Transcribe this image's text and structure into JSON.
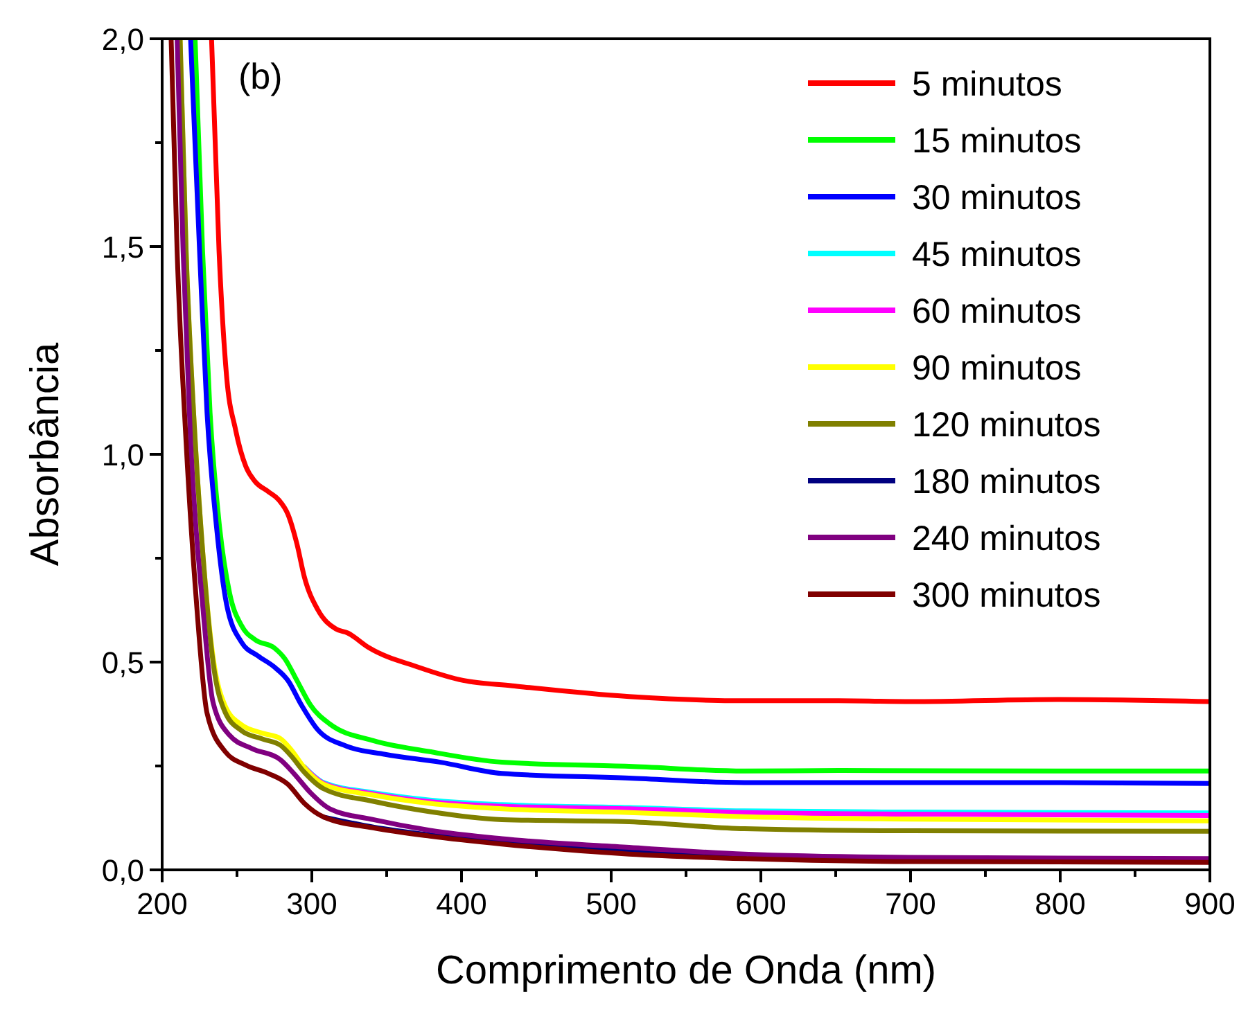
{
  "chart_data": {
    "type": "line",
    "xlabel": "Comprimento de Onda (nm)",
    "ylabel": "Absorbância",
    "annotations": [
      "(b)"
    ],
    "xlim": [
      200,
      900
    ],
    "ylim": [
      0,
      2
    ],
    "xticks": [
      200,
      {
        "value": 250,
        "label": null
      },
      300,
      {
        "value": 350,
        "label": null
      },
      400,
      {
        "value": 450,
        "label": null
      },
      500,
      {
        "value": 550,
        "label": null
      },
      600,
      {
        "value": 650,
        "label": null
      },
      700,
      {
        "value": 750,
        "label": null
      },
      800,
      {
        "value": 850,
        "label": null
      },
      900
    ],
    "yticks": [
      {
        "value": 0,
        "label": "0,0"
      },
      {
        "value": 0.25,
        "label": null
      },
      {
        "value": 0.5,
        "label": "0,5"
      },
      {
        "value": 0.75,
        "label": null
      },
      {
        "value": 1,
        "label": "1,0"
      },
      {
        "value": 1.25,
        "label": null
      },
      {
        "value": 1.5,
        "label": "1,5"
      },
      {
        "value": 1.75,
        "label": null
      },
      {
        "value": 2,
        "label": "2,0"
      }
    ],
    "grid": false,
    "legend": "top right",
    "line_style": "solid",
    "series": [
      {
        "name": "5 minutos",
        "color": "#ff0000",
        "x": [
          233,
          238,
          243,
          249,
          256,
          262,
          271,
          278,
          284,
          290,
          295,
          304,
          316,
          324,
          338,
          371,
          401,
          434,
          512,
          589,
          652,
          700,
          800,
          900
        ],
        "values": [
          2,
          1.49,
          1.19,
          1.06,
          0.97,
          0.935,
          0.91,
          0.89,
          0.856,
          0.785,
          0.705,
          0.626,
          0.58,
          0.57,
          0.535,
          0.488,
          0.456,
          0.443,
          0.417,
          0.407,
          0.407,
          0.405,
          0.41,
          0.405
        ]
      },
      {
        "name": "15 minutos",
        "color": "#00ff00",
        "x": [
          222,
          227,
          232,
          238,
          245,
          253,
          262,
          275,
          282,
          290,
          299,
          312,
          341,
          378,
          427,
          512,
          589,
          652,
          800,
          900
        ],
        "values": [
          2,
          1.49,
          1.1,
          0.837,
          0.667,
          0.588,
          0.554,
          0.534,
          0.508,
          0.456,
          0.397,
          0.351,
          0.311,
          0.285,
          0.259,
          0.249,
          0.238,
          0.239,
          0.238,
          0.238
        ]
      },
      {
        "name": "30 minutos",
        "color": "#0000ff",
        "x": [
          219,
          225,
          230,
          236,
          243,
          253,
          264,
          275,
          284,
          293,
          304,
          323,
          349,
          386,
          427,
          512,
          589,
          652,
          800,
          900
        ],
        "values": [
          2,
          1.49,
          1.1,
          0.837,
          0.64,
          0.548,
          0.515,
          0.488,
          0.456,
          0.397,
          0.337,
          0.298,
          0.278,
          0.259,
          0.232,
          0.221,
          0.21,
          0.21,
          0.21,
          0.208
        ]
      },
      {
        "name": "45 minutos",
        "color": "#00ffff",
        "x": [
          295,
          308,
          341,
          379,
          427,
          512,
          589,
          700,
          900
        ],
        "values": [
          0.248,
          0.21,
          0.186,
          0.168,
          0.157,
          0.15,
          0.142,
          0.139,
          0.137
        ]
      },
      {
        "name": "60 minutos",
        "color": "#ff00ff",
        "x": [
          295,
          308,
          341,
          379,
          427,
          512,
          589,
          700,
          900
        ],
        "values": [
          0.247,
          0.208,
          0.183,
          0.164,
          0.153,
          0.147,
          0.138,
          0.134,
          0.131
        ]
      },
      {
        "name": "90 minutos",
        "color": "#ffff00",
        "x": [
          212,
          216,
          221,
          227,
          234,
          242,
          253,
          267,
          279,
          286,
          295,
          308,
          341,
          379,
          427,
          512,
          589,
          700,
          900
        ],
        "values": [
          2,
          1.49,
          1.1,
          0.77,
          0.512,
          0.395,
          0.349,
          0.329,
          0.316,
          0.29,
          0.246,
          0.206,
          0.18,
          0.16,
          0.147,
          0.138,
          0.128,
          0.122,
          0.118
        ]
      },
      {
        "name": "120 minutos",
        "color": "#808000",
        "x": [
          212,
          216,
          221,
          227,
          234,
          242,
          253,
          267,
          279,
          286,
          295,
          308,
          341,
          379,
          427,
          512,
          589,
          700,
          900
        ],
        "values": [
          2,
          1.49,
          1.1,
          0.77,
          0.5,
          0.38,
          0.335,
          0.315,
          0.3,
          0.275,
          0.235,
          0.195,
          0.165,
          0.14,
          0.121,
          0.116,
          0.099,
          0.094,
          0.093
        ]
      },
      {
        "name": "180 minutos",
        "color": "#000080",
        "x": [
          308,
          341,
          379,
          427,
          512,
          589
        ],
        "values": [
          0.127,
          0.103,
          0.084,
          0.066,
          0.045,
          0.032
        ]
      },
      {
        "name": "240 minutos",
        "color": "#800080",
        "x": [
          210,
          214,
          219,
          227,
          234,
          245,
          260,
          279,
          288,
          299,
          312,
          341,
          379,
          427,
          512,
          589,
          700,
          900
        ],
        "values": [
          2,
          1.49,
          1.03,
          0.64,
          0.403,
          0.324,
          0.292,
          0.265,
          0.232,
          0.186,
          0.147,
          0.121,
          0.095,
          0.075,
          0.054,
          0.038,
          0.03,
          0.027
        ]
      },
      {
        "name": "300 minutos",
        "color": "#800000",
        "x": [
          206,
          210,
          216,
          223,
          230,
          242,
          256,
          271,
          284,
          295,
          308,
          341,
          379,
          427,
          512,
          589,
          700,
          900
        ],
        "values": [
          2,
          1.49,
          1.03,
          0.64,
          0.377,
          0.285,
          0.252,
          0.232,
          0.206,
          0.16,
          0.127,
          0.101,
          0.081,
          0.062,
          0.038,
          0.027,
          0.02,
          0.018
        ]
      }
    ]
  }
}
